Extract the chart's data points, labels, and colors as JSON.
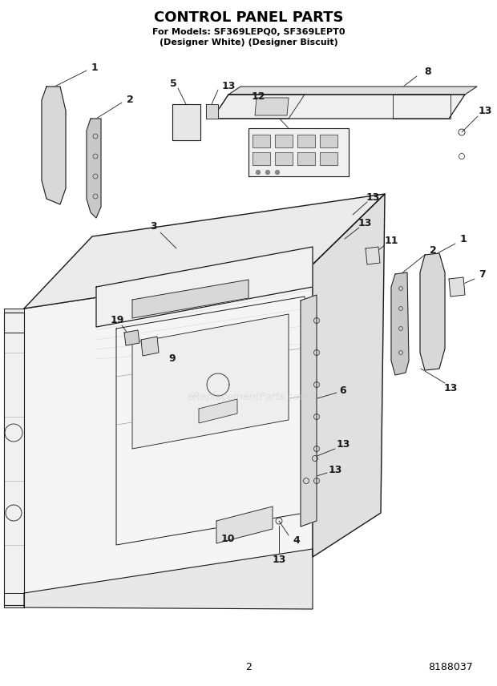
{
  "title": "CONTROL PANEL PARTS",
  "subtitle1": "For Models: SF369LEPQ0, SF369LEPT0",
  "subtitle2": "(Designer White) (Designer Biscuit)",
  "page_number": "2",
  "part_number": "8188037",
  "watermark": "eReplacementParts.com",
  "bg": "#ffffff",
  "lc": "#1a1a1a",
  "gray1": "#c0c0c0",
  "gray2": "#e0e0e0",
  "gray3": "#a0a0a0"
}
